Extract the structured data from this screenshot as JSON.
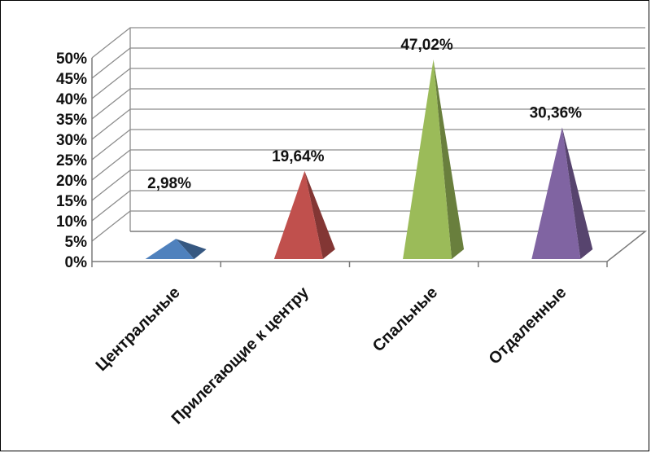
{
  "chart_data": {
    "type": "bar",
    "style": "3d-pyramid",
    "title": "",
    "xlabel": "",
    "ylabel": "",
    "ylim": [
      0,
      50
    ],
    "ytick_step": 5,
    "ytick_labels": [
      "0%",
      "5%",
      "10%",
      "15%",
      "20%",
      "25%",
      "30%",
      "35%",
      "40%",
      "45%",
      "50%"
    ],
    "categories": [
      "Центральные",
      "Прилегающие к центру",
      "Спальные",
      "Отдаленные"
    ],
    "values": [
      2.98,
      19.64,
      47.02,
      30.36
    ],
    "data_labels": [
      "2,98%",
      "19,64%",
      "47,02%",
      "30,36%"
    ],
    "colors": [
      "#4f81bd",
      "#c0504d",
      "#9bbb59",
      "#8064a2"
    ],
    "grid": true,
    "legend": "none"
  }
}
